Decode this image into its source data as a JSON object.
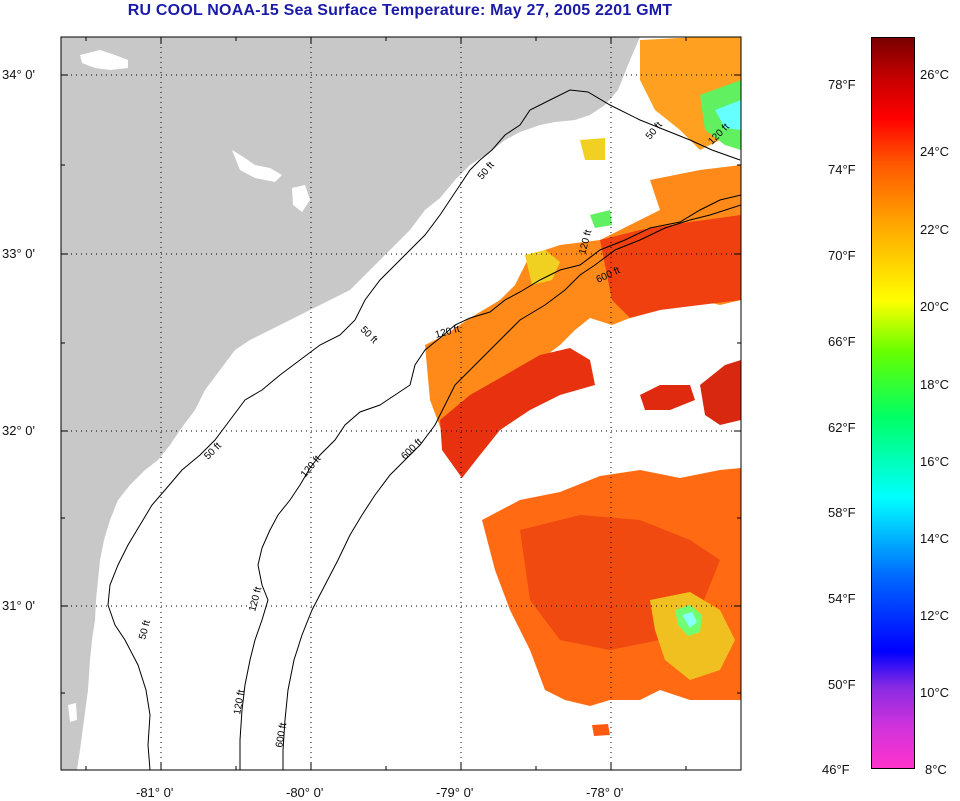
{
  "title": "RU COOL  NOAA-15  Sea Surface Temperature:  May 27, 2005 2201 GMT",
  "map": {
    "lat_labels": [
      "34° 0'",
      "33° 0'",
      "32° 0'",
      "31° 0'"
    ],
    "lon_labels": [
      "-81° 0'",
      "-80° 0'",
      "-79° 0'",
      "-78° 0'"
    ],
    "contours": {
      "c50_a": "50 ft",
      "c50_b": "50 ft",
      "c50_c": "50 ft",
      "c50_d": "50 ft",
      "c50_e": "50 ft",
      "c120_a": "120 ft",
      "c120_b": "120 ft",
      "c120_c": "120 ft",
      "c120_d": "120 ft",
      "c120_e": "120 ft",
      "c120_f": "120 ft",
      "c600_a": "600 ft",
      "c600_b": "600 ft",
      "c600_c": "600 ft"
    }
  },
  "colorbar": {
    "fahrenheit": [
      "78°F",
      "74°F",
      "70°F",
      "66°F",
      "62°F",
      "58°F",
      "54°F",
      "50°F",
      "46°F"
    ],
    "celsius": [
      "26°C",
      "24°C",
      "22°C",
      "20°C",
      "18°C",
      "16°C",
      "14°C",
      "12°C",
      "10°C",
      "8°C"
    ]
  },
  "colors": {
    "land": "#c8c8c8",
    "title": "#1a1aa8",
    "warm_core": "#e02010",
    "warm": "#ff5a10",
    "orange": "#ff8c1a",
    "yellow": "#f0e020",
    "green": "#66ff66",
    "cyan": "#33ffff"
  }
}
